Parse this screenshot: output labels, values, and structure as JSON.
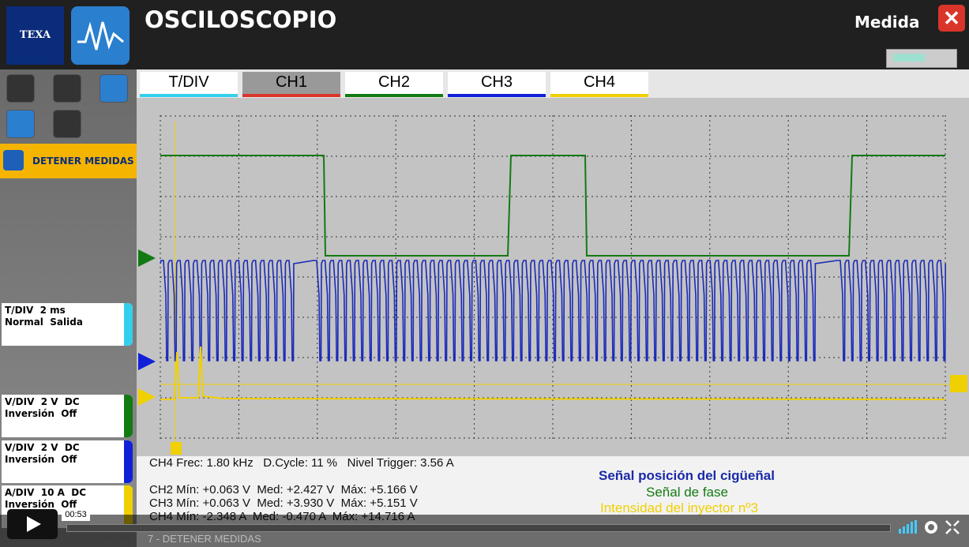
{
  "header": {
    "logo": "TEXA",
    "title": "OSCILOSCOPIO",
    "mode": "Medida"
  },
  "sidebar": {
    "stop_button": "DETENER MEDIDAS",
    "panels": [
      {
        "line1": "T/DIV  2 ms",
        "line2": "Normal  Salida"
      },
      {
        "line1": "V/DIV  2 V  DC",
        "line2": "Inversión  Off"
      },
      {
        "line1": "V/DIV  2 V  DC",
        "line2": "Inversión  Off"
      },
      {
        "line1": "A/DIV  10 A  DC",
        "line2": "Inversión  Off"
      }
    ]
  },
  "tabs": [
    "T/DIV",
    "CH1",
    "CH2",
    "CH3",
    "CH4"
  ],
  "measurements": {
    "summary": "CH4 Frec: 1.80 kHz   D.Cycle: 11 %   Nivel Trigger: 3.56 A",
    "lines": [
      "CH2 Mín: +0.063 V  Med: +2.427 V  Máx: +5.166 V",
      "CH3 Mín: +0.063 V  Med: +3.930 V  Máx: +5.151 V",
      "CH4 Mín: -2.348 A  Med: -0.470 A  Máx: +14.716 A"
    ]
  },
  "legend": [
    "Señal posición del cigüeñal",
    "Señal de fase",
    "Intensidad del inyector nº3"
  ],
  "video": {
    "time": "00:53",
    "caption": "7 - DETENER MEDIDAS"
  }
}
